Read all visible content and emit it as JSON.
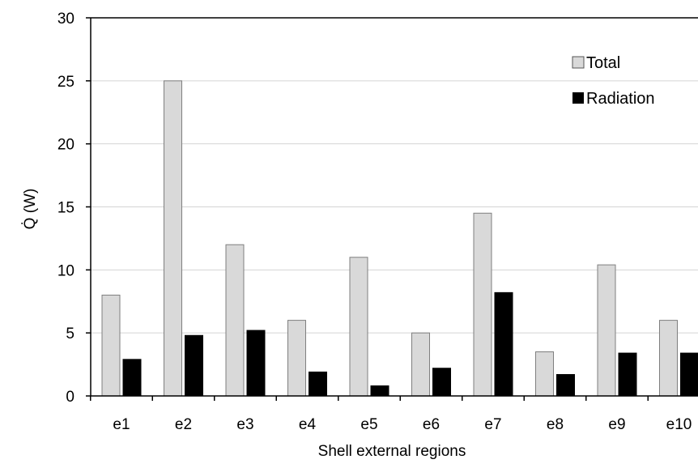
{
  "chart_data": {
    "type": "bar",
    "title": "",
    "xlabel": "Shell external regions",
    "ylabel": "Q̇ (W)",
    "ylim": [
      0,
      30
    ],
    "yticks": [
      0,
      5,
      10,
      15,
      20,
      25,
      30
    ],
    "grid": true,
    "legend_position": "top-right",
    "categories": [
      "e1",
      "e2",
      "e3",
      "e4",
      "e5",
      "e6",
      "e7",
      "e8",
      "e9",
      "e10"
    ],
    "series": [
      {
        "name": "Total",
        "color": "#d9d9d9",
        "values": [
          8,
          25,
          12,
          6,
          11,
          5,
          14.5,
          3.5,
          10.4,
          6
        ]
      },
      {
        "name": "Radiation",
        "color": "#000000",
        "values": [
          2.9,
          4.8,
          5.2,
          1.9,
          0.8,
          2.2,
          8.2,
          1.7,
          3.4,
          3.4
        ]
      }
    ]
  }
}
